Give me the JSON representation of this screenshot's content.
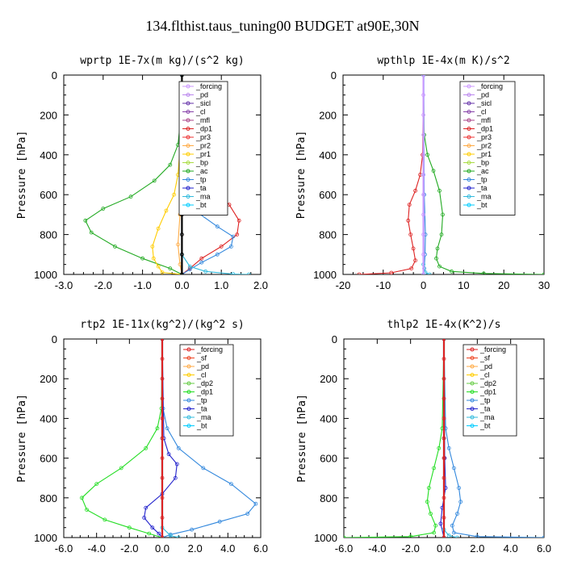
{
  "figure": {
    "title": "134.flthist.taus_tuning00  BUDGET at90E,30N"
  },
  "chart_data": [
    {
      "type": "line",
      "title": "wprtp  1E-7x(m kg)/(s^2 kg)",
      "ylabel": "Pressure [hPa]",
      "xlim": [
        -3.0,
        2.0
      ],
      "ylim": [
        1000,
        0
      ],
      "xticks": [
        "-3.0",
        "-2.0",
        "-1.0",
        "0.0",
        "1.0",
        "2.0"
      ],
      "yticks": [
        "0",
        "200",
        "400",
        "600",
        "800",
        "1000"
      ],
      "legend": [
        "_forcing",
        "_pd",
        "_sicl",
        "_cl",
        "_mfl",
        "_dp1",
        "_pr3",
        "_pr2",
        "_pr1",
        "_bp",
        "_ac",
        "_tp",
        "_ta",
        "_ma",
        "_bt"
      ],
      "series": [
        {
          "name": "_ac",
          "color": "#22aa22",
          "x": [
            0,
            -0.02,
            -0.1,
            -0.3,
            -0.7,
            -1.3,
            -2.0,
            -2.45,
            -2.3,
            -1.7,
            -1.0,
            -0.3,
            0
          ],
          "y": [
            0,
            200,
            350,
            450,
            530,
            610,
            670,
            730,
            790,
            860,
            920,
            970,
            1000
          ]
        },
        {
          "name": "_bp",
          "color": "#ffcc00",
          "x": [
            0,
            -0.02,
            -0.1,
            -0.2,
            -0.4,
            -0.6,
            -0.75,
            -0.72,
            -0.6,
            -0.5,
            0
          ],
          "y": [
            0,
            300,
            500,
            600,
            680,
            770,
            860,
            920,
            960,
            990,
            1000
          ]
        },
        {
          "name": "_pr1",
          "color": "#ffaa44",
          "x": [
            0,
            -0.02,
            -0.05,
            -0.1,
            -0.05,
            0
          ],
          "y": [
            0,
            500,
            700,
            850,
            950,
            1000
          ]
        },
        {
          "name": "_dp1",
          "color": "#dd2222",
          "x": [
            0,
            0.05,
            0.3,
            0.8,
            1.2,
            1.45,
            1.4,
            1.0,
            0.5,
            0.2,
            0
          ],
          "y": [
            0,
            400,
            500,
            580,
            650,
            730,
            800,
            860,
            920,
            970,
            1000
          ]
        },
        {
          "name": "_tp",
          "color": "#3388dd",
          "x": [
            0,
            0.02,
            0.1,
            0.4,
            0.9,
            1.3,
            1.25,
            0.9,
            0.5,
            0.2,
            0
          ],
          "y": [
            0,
            500,
            600,
            690,
            760,
            810,
            860,
            900,
            940,
            975,
            1000
          ]
        },
        {
          "name": "_ma",
          "color": "#33bbdd",
          "x": [
            0,
            0.0,
            0.2,
            0.6,
            1.3,
            1.7
          ],
          "y": [
            0,
            900,
            960,
            985,
            998,
            1000
          ]
        },
        {
          "name": "_forcing",
          "color": "#000000",
          "x": [
            0,
            0,
            0,
            0,
            0,
            0,
            0,
            0,
            0,
            0,
            0
          ],
          "y": [
            0,
            100,
            200,
            300,
            400,
            500,
            600,
            700,
            800,
            900,
            1000
          ]
        }
      ]
    },
    {
      "type": "line",
      "title": "wpthlp  1E-4x(m K)/s^2",
      "ylabel": "Pressure [hPa]",
      "xlim": [
        -20,
        30
      ],
      "ylim": [
        1000,
        0
      ],
      "xticks": [
        "-20",
        "-10",
        "0",
        "10",
        "20",
        "30"
      ],
      "yticks": [
        "0",
        "200",
        "400",
        "600",
        "800",
        "1000"
      ],
      "legend": [
        "_forcing",
        "_pd",
        "_sicl",
        "_cl",
        "_mfl",
        "_dp1",
        "_pr3",
        "_pr2",
        "_pr1",
        "_bp",
        "_ac",
        "_tp",
        "_ta",
        "_ma",
        "_bt"
      ],
      "series": [
        {
          "name": "_ac",
          "color": "#22aa22",
          "x": [
            0,
            0.2,
            1.0,
            2.5,
            4.0,
            4.8,
            4.5,
            3.5,
            3.2,
            4.0,
            7.0,
            15.0,
            30.0
          ],
          "y": [
            0,
            300,
            400,
            480,
            580,
            700,
            800,
            870,
            920,
            960,
            985,
            995,
            1000
          ]
        },
        {
          "name": "_dp1",
          "color": "#dd2222",
          "x": [
            0,
            -0.2,
            -0.8,
            -2.0,
            -3.5,
            -3.8,
            -3.2,
            -2.5,
            -2.0,
            -3.0,
            -8.0,
            -16.0
          ],
          "y": [
            0,
            400,
            500,
            580,
            650,
            730,
            800,
            870,
            930,
            970,
            992,
            1000
          ]
        },
        {
          "name": "_tp",
          "color": "#3388dd",
          "x": [
            0,
            0.2,
            0.5,
            0.4,
            0.2,
            0
          ],
          "y": [
            0,
            600,
            800,
            900,
            970,
            1000
          ]
        },
        {
          "name": "_ma",
          "color": "#33bbdd",
          "x": [
            0,
            0,
            0.5,
            1.5
          ],
          "y": [
            0,
            950,
            990,
            1000
          ]
        },
        {
          "name": "_bt",
          "color": "#00ccff",
          "x": [
            0,
            0,
            0
          ],
          "y": [
            0,
            500,
            1000
          ]
        },
        {
          "name": "_forcing",
          "color": "#cc99ff",
          "x": [
            0,
            0,
            0,
            0,
            0,
            0,
            0,
            0,
            0,
            0,
            0
          ],
          "y": [
            0,
            100,
            200,
            300,
            400,
            500,
            600,
            700,
            800,
            900,
            1000
          ]
        }
      ]
    },
    {
      "type": "line",
      "title": "rtp2  1E-11x(kg^2)/(kg^2 s)",
      "ylabel": "Pressure [hPa]",
      "xlim": [
        -6.0,
        6.0
      ],
      "ylim": [
        1000,
        0
      ],
      "xticks": [
        "-6.0",
        "-4.0",
        "-2.0",
        "0.0",
        "2.0",
        "4.0",
        "6.0"
      ],
      "yticks": [
        "0",
        "200",
        "400",
        "600",
        "800",
        "1000"
      ],
      "legend": [
        "_forcing",
        "_sf",
        "_pd",
        "_cl",
        "_dp2",
        "_dp1",
        "_tp",
        "_ta",
        "_ma",
        "_bt"
      ],
      "series": [
        {
          "name": "_dp1",
          "color": "#22dd22",
          "x": [
            0,
            -0.05,
            -0.3,
            -1.0,
            -2.5,
            -4.0,
            -4.9,
            -4.6,
            -3.5,
            -2.0,
            -0.8,
            0
          ],
          "y": [
            0,
            350,
            450,
            550,
            650,
            730,
            800,
            860,
            910,
            950,
            980,
            1000
          ]
        },
        {
          "name": "_tp",
          "color": "#3388dd",
          "x": [
            0,
            0.05,
            0.3,
            1.0,
            2.5,
            4.2,
            5.7,
            5.2,
            3.5,
            1.8,
            0.5,
            0
          ],
          "y": [
            0,
            350,
            450,
            550,
            650,
            730,
            830,
            880,
            920,
            960,
            985,
            1000
          ]
        },
        {
          "name": "_ta",
          "color": "#2222cc",
          "x": [
            0,
            0.1,
            0.4,
            0.9,
            0.8,
            0.0,
            -1.0,
            -1.1,
            -0.6,
            -0.2,
            0
          ],
          "y": [
            0,
            500,
            580,
            630,
            700,
            780,
            850,
            900,
            950,
            980,
            1000
          ]
        },
        {
          "name": "_ma",
          "color": "#33bbdd",
          "x": [
            0,
            0,
            0.5,
            1.0
          ],
          "y": [
            0,
            950,
            990,
            1000
          ]
        },
        {
          "name": "_bt",
          "color": "#00ccff",
          "x": [
            0,
            0,
            0
          ],
          "y": [
            0,
            500,
            1000
          ]
        },
        {
          "name": "_forcing",
          "color": "#dd2222",
          "x": [
            0,
            0,
            0,
            0,
            0,
            0,
            0,
            0,
            0,
            0,
            0
          ],
          "y": [
            0,
            100,
            200,
            300,
            400,
            500,
            600,
            700,
            800,
            900,
            1000
          ]
        }
      ]
    },
    {
      "type": "line",
      "title": "thlp2  1E-4x(K^2)/s",
      "ylabel": "Pressure [hPa]",
      "xlim": [
        -6.0,
        6.0
      ],
      "ylim": [
        1000,
        0
      ],
      "xticks": [
        "-6.0",
        "-4.0",
        "-2.0",
        "0.0",
        "2.0",
        "4.0",
        "6.0"
      ],
      "yticks": [
        "0",
        "200",
        "400",
        "600",
        "800",
        "1000"
      ],
      "legend": [
        "_forcing",
        "_sf",
        "_pd",
        "_cl",
        "_dp2",
        "_dp1",
        "_tp",
        "_ta",
        "_ma",
        "_bt"
      ],
      "series": [
        {
          "name": "_dp1",
          "color": "#22dd22",
          "x": [
            0,
            -0.1,
            -0.3,
            -0.6,
            -0.9,
            -1.0,
            -0.8,
            -0.5,
            -0.6,
            -2.0,
            -6.0
          ],
          "y": [
            0,
            450,
            550,
            650,
            750,
            820,
            880,
            940,
            975,
            995,
            1000
          ]
        },
        {
          "name": "_tp",
          "color": "#3388dd",
          "x": [
            0,
            0.1,
            0.3,
            0.6,
            0.9,
            1.0,
            0.8,
            0.5,
            0.6,
            2.0,
            6.0
          ],
          "y": [
            0,
            450,
            550,
            650,
            750,
            820,
            880,
            940,
            975,
            995,
            1000
          ]
        },
        {
          "name": "_ta",
          "color": "#2222cc",
          "x": [
            0,
            0.05,
            0.1,
            -0.1,
            -0.2,
            0
          ],
          "y": [
            0,
            600,
            750,
            850,
            930,
            1000
          ]
        },
        {
          "name": "_ma",
          "color": "#33bbdd",
          "x": [
            0,
            0,
            0.3,
            0.8
          ],
          "y": [
            0,
            960,
            990,
            1000
          ]
        },
        {
          "name": "_bt",
          "color": "#00ccff",
          "x": [
            0,
            0,
            0
          ],
          "y": [
            0,
            500,
            1000
          ]
        },
        {
          "name": "_forcing",
          "color": "#dd2222",
          "x": [
            0,
            0,
            0,
            0,
            0,
            0,
            0,
            0,
            0,
            0,
            0
          ],
          "y": [
            0,
            100,
            200,
            300,
            400,
            500,
            600,
            700,
            800,
            900,
            1000
          ]
        }
      ]
    }
  ]
}
